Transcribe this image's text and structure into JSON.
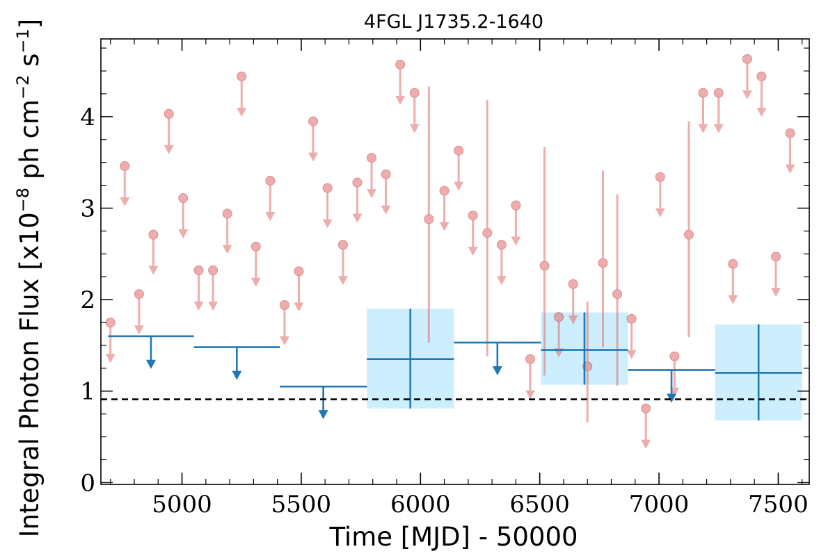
{
  "chart_data": {
    "type": "scatter",
    "title": "4FGL J1735.2-1640",
    "xlabel": "Time [MJD] - 50000",
    "ylabel": "Integral Photon Flux [x10",
    "ylabel_exp1": "−8",
    "ylabel_mid": " ph cm",
    "ylabel_exp2": "−2",
    "ylabel_mid2": " s",
    "ylabel_exp3": "−1",
    "ylabel_end": "]",
    "xlim": [
      4660,
      7630
    ],
    "ylim": [
      -0.02,
      4.85
    ],
    "xticks": [
      5000,
      5500,
      6000,
      6500,
      7000,
      7500
    ],
    "yticks": [
      0,
      1,
      2,
      3,
      4
    ],
    "reference_line": {
      "y": 0.91,
      "style": "dashed",
      "color": "#000000"
    },
    "colors": {
      "monthly": "#e06b6b",
      "yearly": "#1f77b4",
      "yearly_box": "#cdeefc"
    },
    "series": [
      {
        "points": [
          {
            "x": 4700,
            "y": 1.75,
            "ul": true
          },
          {
            "x": 4760,
            "y": 3.46,
            "ul": true
          },
          {
            "x": 4820,
            "y": 2.06,
            "ul": true
          },
          {
            "x": 4880,
            "y": 2.71,
            "ul": true
          },
          {
            "x": 4945,
            "y": 4.03,
            "ul": true
          },
          {
            "x": 5005,
            "y": 3.11,
            "ul": true
          },
          {
            "x": 5070,
            "y": 2.32,
            "ul": true
          },
          {
            "x": 5130,
            "y": 2.32,
            "ul": true
          },
          {
            "x": 5190,
            "y": 2.94,
            "ul": true
          },
          {
            "x": 5250,
            "y": 4.44,
            "ul": true
          },
          {
            "x": 5310,
            "y": 2.58,
            "ul": true
          },
          {
            "x": 5370,
            "y": 3.3,
            "ul": true
          },
          {
            "x": 5430,
            "y": 1.94,
            "ul": true
          },
          {
            "x": 5490,
            "y": 2.31,
            "ul": true
          },
          {
            "x": 5550,
            "y": 3.95,
            "ul": true
          },
          {
            "x": 5610,
            "y": 3.22,
            "ul": true
          },
          {
            "x": 5675,
            "y": 2.6,
            "ul": true
          },
          {
            "x": 5735,
            "y": 3.28,
            "ul": true
          },
          {
            "x": 5795,
            "y": 3.55,
            "ul": true
          },
          {
            "x": 5855,
            "y": 3.37,
            "ul": true
          },
          {
            "x": 5915,
            "y": 4.57,
            "ul": true
          },
          {
            "x": 5975,
            "y": 4.26,
            "ul": true
          },
          {
            "x": 6035,
            "y": 2.88,
            "ul": false,
            "yerr_lo": 1.53,
            "yerr_hi": 4.33
          },
          {
            "x": 6100,
            "y": 3.19,
            "ul": true
          },
          {
            "x": 6160,
            "y": 3.63,
            "ul": true
          },
          {
            "x": 6220,
            "y": 2.92,
            "ul": true
          },
          {
            "x": 6280,
            "y": 2.73,
            "ul": false,
            "yerr_lo": 1.38,
            "yerr_hi": 4.18
          },
          {
            "x": 6340,
            "y": 2.6,
            "ul": true
          },
          {
            "x": 6400,
            "y": 3.03,
            "ul": true
          },
          {
            "x": 6460,
            "y": 1.35,
            "ul": true
          },
          {
            "x": 6520,
            "y": 2.37,
            "ul": false,
            "yerr_lo": 1.17,
            "yerr_hi": 3.67
          },
          {
            "x": 6580,
            "y": 1.81,
            "ul": true
          },
          {
            "x": 6640,
            "y": 2.17,
            "ul": true
          },
          {
            "x": 6700,
            "y": 1.27,
            "ul": false,
            "yerr_lo": 0.66,
            "yerr_hi": 1.98
          },
          {
            "x": 6765,
            "y": 2.4,
            "ul": false,
            "yerr_lo": 1.48,
            "yerr_hi": 3.41
          },
          {
            "x": 6825,
            "y": 2.06,
            "ul": false,
            "yerr_lo": 1.06,
            "yerr_hi": 3.15
          },
          {
            "x": 6885,
            "y": 1.79,
            "ul": true
          },
          {
            "x": 6945,
            "y": 0.81,
            "ul": true
          },
          {
            "x": 7005,
            "y": 3.34,
            "ul": true
          },
          {
            "x": 7065,
            "y": 1.38,
            "ul": true
          },
          {
            "x": 7125,
            "y": 2.71,
            "ul": false,
            "yerr_lo": 1.59,
            "yerr_hi": 3.95
          },
          {
            "x": 7185,
            "y": 4.26,
            "ul": true
          },
          {
            "x": 7250,
            "y": 4.26,
            "ul": true
          },
          {
            "x": 7310,
            "y": 2.39,
            "ul": true
          },
          {
            "x": 7370,
            "y": 4.63,
            "ul": true
          },
          {
            "x": 7430,
            "y": 4.44,
            "ul": true
          },
          {
            "x": 7490,
            "y": 2.47,
            "ul": true
          },
          {
            "x": 7550,
            "y": 3.82,
            "ul": true
          }
        ]
      },
      {
        "bins": [
          {
            "x0": 4690,
            "x1": 5050,
            "y": 1.6,
            "ul": true
          },
          {
            "x0": 5050,
            "x1": 5410,
            "y": 1.48,
            "ul": true
          },
          {
            "x0": 5410,
            "x1": 5775,
            "y": 1.05,
            "ul": true
          },
          {
            "x0": 5775,
            "x1": 6140,
            "y": 1.35,
            "ul": false,
            "yerr_lo": 0.81,
            "yerr_hi": 1.9
          },
          {
            "x0": 6140,
            "x1": 6505,
            "y": 1.53,
            "ul": true
          },
          {
            "x0": 6505,
            "x1": 6870,
            "y": 1.45,
            "ul": false,
            "yerr_lo": 1.07,
            "yerr_hi": 1.86
          },
          {
            "x0": 6870,
            "x1": 7235,
            "y": 1.23,
            "ul": true
          },
          {
            "x0": 7235,
            "x1": 7600,
            "y": 1.2,
            "ul": false,
            "yerr_lo": 0.68,
            "yerr_hi": 1.73
          }
        ]
      }
    ]
  }
}
